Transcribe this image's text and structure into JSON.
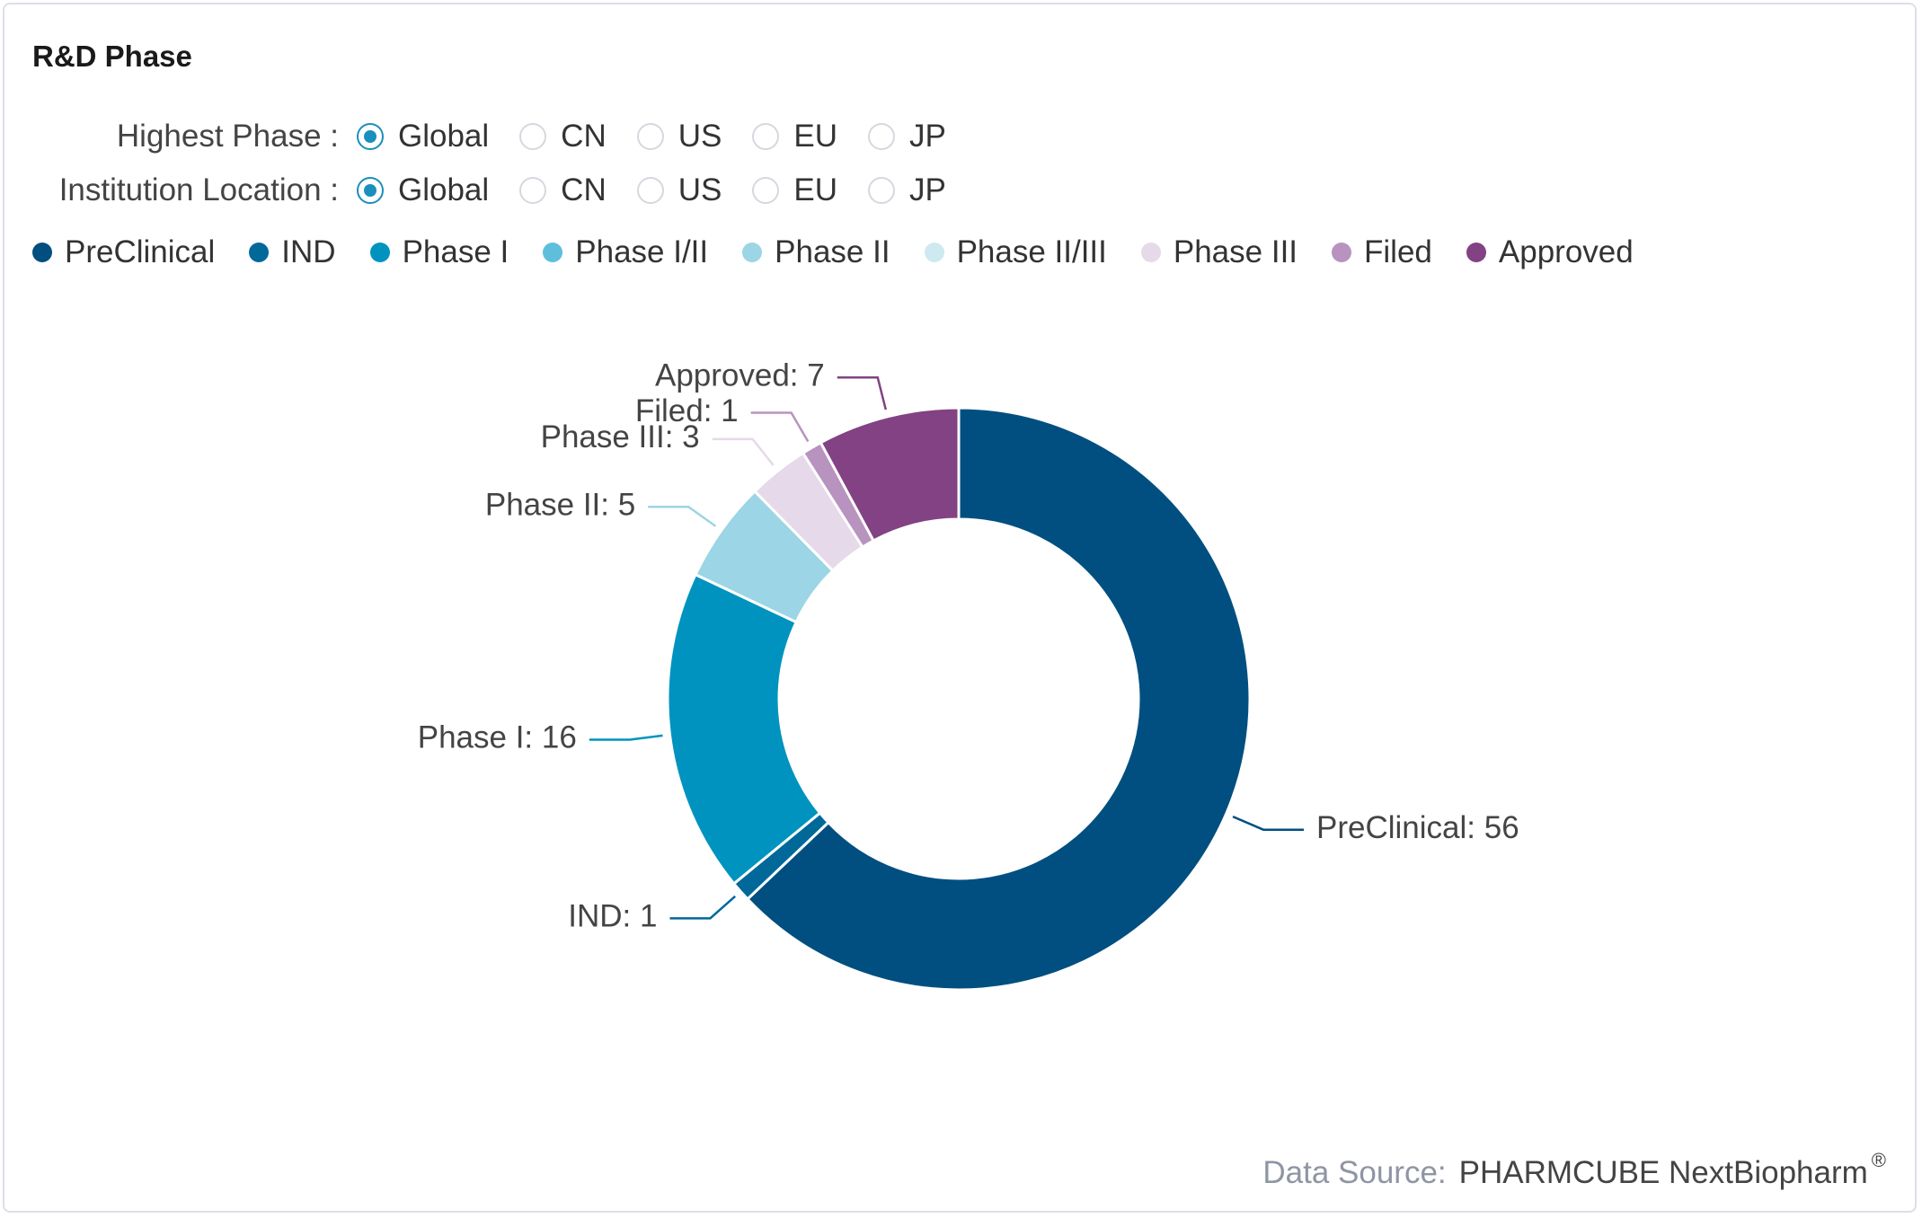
{
  "card": {
    "title": "R&D Phase"
  },
  "filters": [
    {
      "label": "Highest Phase :",
      "options": [
        "Global",
        "CN",
        "US",
        "EU",
        "JP"
      ],
      "selected": "Global"
    },
    {
      "label": "Institution Location :",
      "options": [
        "Global",
        "CN",
        "US",
        "EU",
        "JP"
      ],
      "selected": "Global"
    }
  ],
  "colors": {
    "accent": "#1a8fbd"
  },
  "chart_data": {
    "type": "pie",
    "donut": true,
    "legend_placement": "top-left",
    "categories": [
      "PreClinical",
      "IND",
      "Phase I",
      "Phase I/II",
      "Phase II",
      "Phase II/III",
      "Phase III",
      "Filed",
      "Approved"
    ],
    "values": [
      56,
      1,
      16,
      0,
      5,
      0,
      3,
      1,
      7
    ],
    "colors": [
      "#004f80",
      "#01689a",
      "#0093bf",
      "#5ebfdc",
      "#9bd5e6",
      "#cfe9f1",
      "#e6d9e9",
      "#b893bf",
      "#824283"
    ],
    "data_labels": [
      "PreClinical: 56",
      "IND: 1",
      "Phase I: 16",
      "",
      "Phase II: 5",
      "",
      "Phase III: 3",
      "Filed: 1",
      "Approved: 7"
    ]
  },
  "footer": {
    "label": "Data Source:",
    "value": "PHARMCUBE NextBiopharm",
    "mark": "®"
  }
}
